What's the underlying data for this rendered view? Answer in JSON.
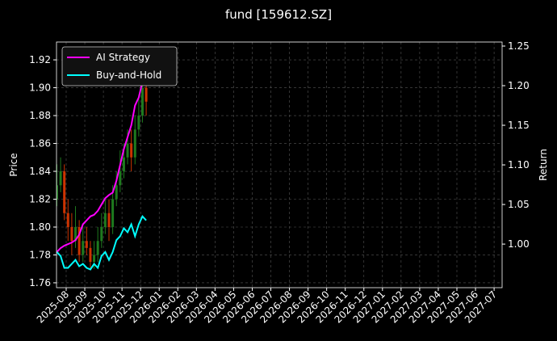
{
  "chart_data": {
    "type": "candlestick",
    "title": "fund [159612.SZ]",
    "y_label": "Price",
    "y2_label": "Return",
    "x": [
      -0.5,
      -0.3,
      -0.1,
      0.1,
      0.3,
      0.5,
      0.7,
      0.9,
      1.1,
      1.3,
      1.5,
      1.7,
      1.9,
      2.1,
      2.3,
      2.5,
      2.7,
      2.9,
      3.1,
      3.3,
      3.5,
      3.7,
      3.9,
      4.1,
      4.3
    ],
    "open": [
      1.82,
      1.83,
      1.84,
      1.81,
      1.8,
      1.79,
      1.8,
      1.78,
      1.79,
      1.785,
      1.775,
      1.78,
      1.79,
      1.8,
      1.81,
      1.8,
      1.82,
      1.83,
      1.84,
      1.85,
      1.86,
      1.85,
      1.87,
      1.88,
      1.9
    ],
    "high": [
      1.845,
      1.85,
      1.845,
      1.82,
      1.81,
      1.815,
      1.805,
      1.8,
      1.8,
      1.79,
      1.79,
      1.8,
      1.81,
      1.82,
      1.82,
      1.83,
      1.84,
      1.855,
      1.86,
      1.87,
      1.87,
      1.88,
      1.895,
      1.915,
      1.91
    ],
    "low": [
      1.815,
      1.825,
      1.805,
      1.79,
      1.78,
      1.785,
      1.775,
      1.775,
      1.78,
      1.77,
      1.77,
      1.775,
      1.785,
      1.795,
      1.79,
      1.795,
      1.815,
      1.825,
      1.835,
      1.845,
      1.84,
      1.845,
      1.865,
      1.875,
      1.88
    ],
    "close": [
      1.83,
      1.84,
      1.81,
      1.8,
      1.79,
      1.8,
      1.78,
      1.79,
      1.785,
      1.775,
      1.78,
      1.79,
      1.8,
      1.81,
      1.8,
      1.82,
      1.83,
      1.84,
      1.85,
      1.86,
      1.85,
      1.87,
      1.88,
      1.9,
      1.89
    ],
    "up_color": "#1e7a1e",
    "down_color": "#cc3300",
    "series": [
      {
        "name": "AI Strategy",
        "color": "#ff00ff",
        "axis": "y2",
        "values": [
          0.99,
          0.995,
          0.998,
          1.0,
          1.002,
          1.005,
          1.012,
          1.025,
          1.03,
          1.035,
          1.037,
          1.042,
          1.05,
          1.058,
          1.062,
          1.065,
          1.08,
          1.1,
          1.12,
          1.135,
          1.15,
          1.175,
          1.185,
          1.205,
          1.21
        ]
      },
      {
        "name": "Buy-and-Hold",
        "color": "#00ffff",
        "axis": "y2",
        "values": [
          0.99,
          0.985,
          0.97,
          0.97,
          0.975,
          0.98,
          0.972,
          0.975,
          0.97,
          0.968,
          0.975,
          0.97,
          0.985,
          0.99,
          0.98,
          0.99,
          1.005,
          1.01,
          1.02,
          1.015,
          1.025,
          1.01,
          1.025,
          1.035,
          1.03
        ]
      }
    ],
    "xlim": [
      -0.52,
      23.43
    ],
    "xticks": [
      {
        "value": 0,
        "label": "2025-08"
      },
      {
        "value": 1,
        "label": "2025-09"
      },
      {
        "value": 2,
        "label": "2025-10"
      },
      {
        "value": 3,
        "label": "2025-11"
      },
      {
        "value": 4,
        "label": "2025-12"
      },
      {
        "value": 5,
        "label": "2026-01"
      },
      {
        "value": 6,
        "label": "2026-02"
      },
      {
        "value": 7,
        "label": "2026-03"
      },
      {
        "value": 8,
        "label": "2026-04"
      },
      {
        "value": 9,
        "label": "2026-05"
      },
      {
        "value": 10,
        "label": "2026-06"
      },
      {
        "value": 11,
        "label": "2026-07"
      },
      {
        "value": 12,
        "label": "2026-08"
      },
      {
        "value": 13,
        "label": "2026-09"
      },
      {
        "value": 14,
        "label": "2026-10"
      },
      {
        "value": 15,
        "label": "2026-11"
      },
      {
        "value": 16,
        "label": "2026-12"
      },
      {
        "value": 17,
        "label": "2027-01"
      },
      {
        "value": 18,
        "label": "2027-02"
      },
      {
        "value": 19,
        "label": "2027-03"
      },
      {
        "value": 20,
        "label": "2027-04"
      },
      {
        "value": 21,
        "label": "2027-05"
      },
      {
        "value": 22,
        "label": "2027-06"
      },
      {
        "value": 23,
        "label": "2027-07"
      }
    ],
    "ylim": [
      1.7565,
      1.9328
    ],
    "yticks": [
      1.76,
      1.78,
      {
        "value": 1.8,
        "label": "1.80"
      },
      1.82,
      1.84,
      1.86,
      1.88,
      {
        "value": 1.9,
        "label": "1.90"
      },
      1.92
    ],
    "y2lim": [
      0.945,
      1.2551
    ],
    "y2ticks": [
      {
        "value": 1,
        "label": "1.00"
      },
      1.05,
      {
        "value": 1.1,
        "label": "1.10"
      },
      1.15,
      {
        "value": 1.2,
        "label": "1.20"
      },
      1.25
    ],
    "grid": true,
    "legend": "upper left"
  }
}
